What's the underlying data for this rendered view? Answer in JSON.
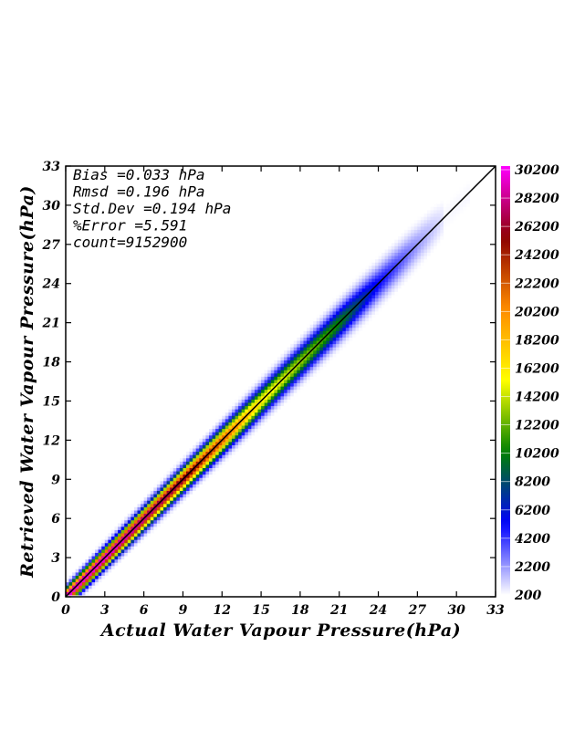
{
  "chart_data": {
    "type": "heatmap",
    "title": "",
    "xlabel": "Actual Water Vapour Pressure(hPa)",
    "ylabel": "Retrieved Water Vapour Pressure(hPa)",
    "xlim": [
      0,
      33
    ],
    "ylim": [
      0,
      33
    ],
    "x_ticks": [
      "0",
      "3",
      "6",
      "9",
      "12",
      "15",
      "18",
      "21",
      "24",
      "27",
      "30",
      "33"
    ],
    "y_ticks": [
      "0",
      "3",
      "6",
      "9",
      "12",
      "15",
      "18",
      "21",
      "24",
      "27",
      "30",
      "33"
    ],
    "reference_line": "1:1",
    "grid": false,
    "stats": [
      {
        "label": "Bias",
        "text": "Bias         =0.033 hPa"
      },
      {
        "label": "Rmsd",
        "text": "Rmsd         =0.196 hPa"
      },
      {
        "label": "Std.Dev",
        "text": "Std.Dev      =0.194 hPa"
      },
      {
        "label": "%Error",
        "text": "%Error       =5.591"
      },
      {
        "label": "count",
        "text": "count=9152900"
      }
    ],
    "colorbar": {
      "range": [
        200,
        30200
      ],
      "ticks": [
        "30200",
        "28200",
        "26200",
        "24200",
        "22200",
        "20200",
        "18200",
        "16200",
        "14200",
        "12200",
        "10200",
        "8200",
        "6200",
        "4200",
        "2200",
        "200"
      ],
      "colors": [
        "#ffffff",
        "#0000ff",
        "#008000",
        "#ffff00",
        "#ff8c00",
        "#8b0000",
        "#ff00ff"
      ]
    },
    "density_band": [
      {
        "x": 0.5,
        "peak": 30200
      },
      {
        "x": 3,
        "peak": 30200
      },
      {
        "x": 6,
        "peak": 28200
      },
      {
        "x": 9,
        "peak": 26200
      },
      {
        "x": 12,
        "peak": 22200
      },
      {
        "x": 15,
        "peak": 16200
      },
      {
        "x": 18,
        "peak": 13200
      },
      {
        "x": 21,
        "peak": 10200
      },
      {
        "x": 24,
        "peak": 5200
      },
      {
        "x": 27,
        "peak": 2200
      },
      {
        "x": 29,
        "peak": 700
      }
    ]
  }
}
